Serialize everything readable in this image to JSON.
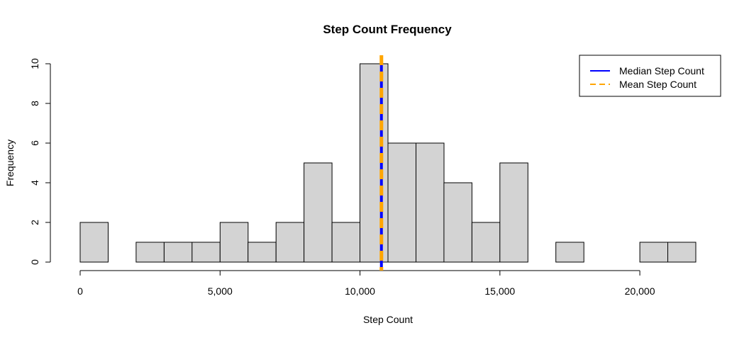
{
  "chart_data": {
    "type": "bar",
    "title": "Step Count Frequency",
    "xlabel": "Step Count",
    "ylabel": "Frequency",
    "bin_width": 1000,
    "bins": [
      {
        "start": 0,
        "end": 1000,
        "count": 2
      },
      {
        "start": 1000,
        "end": 2000,
        "count": 0
      },
      {
        "start": 2000,
        "end": 3000,
        "count": 1
      },
      {
        "start": 3000,
        "end": 4000,
        "count": 1
      },
      {
        "start": 4000,
        "end": 5000,
        "count": 1
      },
      {
        "start": 5000,
        "end": 6000,
        "count": 2
      },
      {
        "start": 6000,
        "end": 7000,
        "count": 1
      },
      {
        "start": 7000,
        "end": 8000,
        "count": 2
      },
      {
        "start": 8000,
        "end": 9000,
        "count": 5
      },
      {
        "start": 9000,
        "end": 10000,
        "count": 2
      },
      {
        "start": 10000,
        "end": 11000,
        "count": 10
      },
      {
        "start": 11000,
        "end": 12000,
        "count": 6
      },
      {
        "start": 12000,
        "end": 13000,
        "count": 6
      },
      {
        "start": 13000,
        "end": 14000,
        "count": 4
      },
      {
        "start": 14000,
        "end": 15000,
        "count": 2
      },
      {
        "start": 15000,
        "end": 16000,
        "count": 5
      },
      {
        "start": 16000,
        "end": 17000,
        "count": 0
      },
      {
        "start": 17000,
        "end": 18000,
        "count": 1
      },
      {
        "start": 18000,
        "end": 19000,
        "count": 0
      },
      {
        "start": 19000,
        "end": 20000,
        "count": 0
      },
      {
        "start": 20000,
        "end": 21000,
        "count": 1
      },
      {
        "start": 21000,
        "end": 22000,
        "count": 1
      }
    ],
    "xlim": [
      0,
      22000
    ],
    "ylim": [
      0,
      10
    ],
    "x_ticks": [
      {
        "value": 0,
        "label": "0"
      },
      {
        "value": 5000,
        "label": "5,000"
      },
      {
        "value": 10000,
        "label": "10,000"
      },
      {
        "value": 15000,
        "label": "15,000"
      },
      {
        "value": 20000,
        "label": "20,000"
      }
    ],
    "y_ticks": [
      {
        "value": 0,
        "label": "0"
      },
      {
        "value": 2,
        "label": "2"
      },
      {
        "value": 4,
        "label": "4"
      },
      {
        "value": 6,
        "label": "6"
      },
      {
        "value": 8,
        "label": "8"
      },
      {
        "value": 10,
        "label": "10"
      }
    ],
    "bar_color": "#d3d3d3",
    "reference_lines": [
      {
        "name": "Median Step Count",
        "value": 10765,
        "color": "#0000ff",
        "style": "solid"
      },
      {
        "name": "Mean Step Count",
        "value": 10766,
        "color": "#ffa500",
        "style": "dashed"
      }
    ],
    "legend_position": "top-right",
    "grid": false
  }
}
